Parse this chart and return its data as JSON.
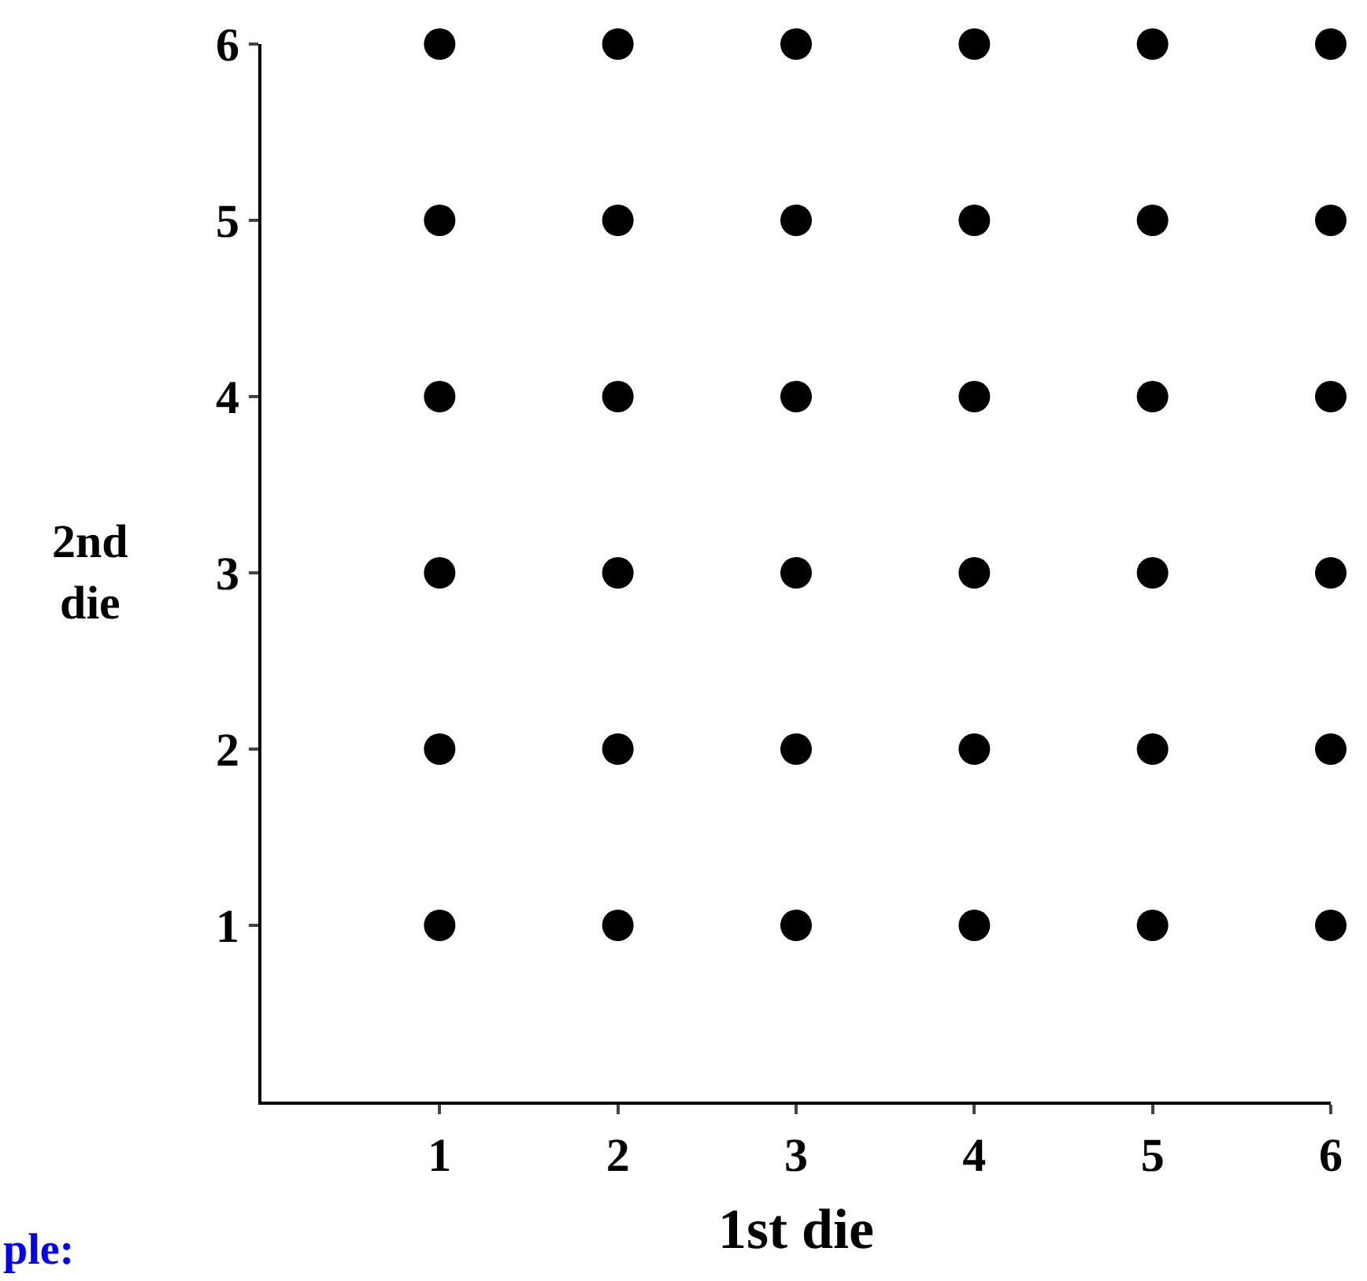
{
  "chart_data": {
    "type": "scatter",
    "xlabel": "1st die",
    "ylabel": "2nd die",
    "annotations": [
      "ple:"
    ],
    "series": [
      {
        "color": "#000000",
        "x": [
          1,
          2,
          3,
          4,
          5,
          6,
          1,
          2,
          3,
          4,
          5,
          6,
          1,
          2,
          3,
          4,
          5,
          6,
          1,
          2,
          3,
          4,
          5,
          6,
          1,
          2,
          3,
          4,
          5,
          6,
          1,
          2,
          3,
          4,
          5,
          6
        ],
        "values": [
          1,
          1,
          1,
          1,
          1,
          1,
          2,
          2,
          2,
          2,
          2,
          2,
          3,
          3,
          3,
          3,
          3,
          3,
          4,
          4,
          4,
          4,
          4,
          4,
          5,
          5,
          5,
          5,
          5,
          5,
          6,
          6,
          6,
          6,
          6,
          6
        ]
      }
    ],
    "xlim": [
      0,
      6
    ],
    "ylim": [
      0,
      6
    ],
    "xticks": [
      1,
      2,
      3,
      4,
      5,
      6
    ],
    "yticks": [
      1,
      2,
      3,
      4,
      5,
      6
    ],
    "marker": "circle"
  }
}
